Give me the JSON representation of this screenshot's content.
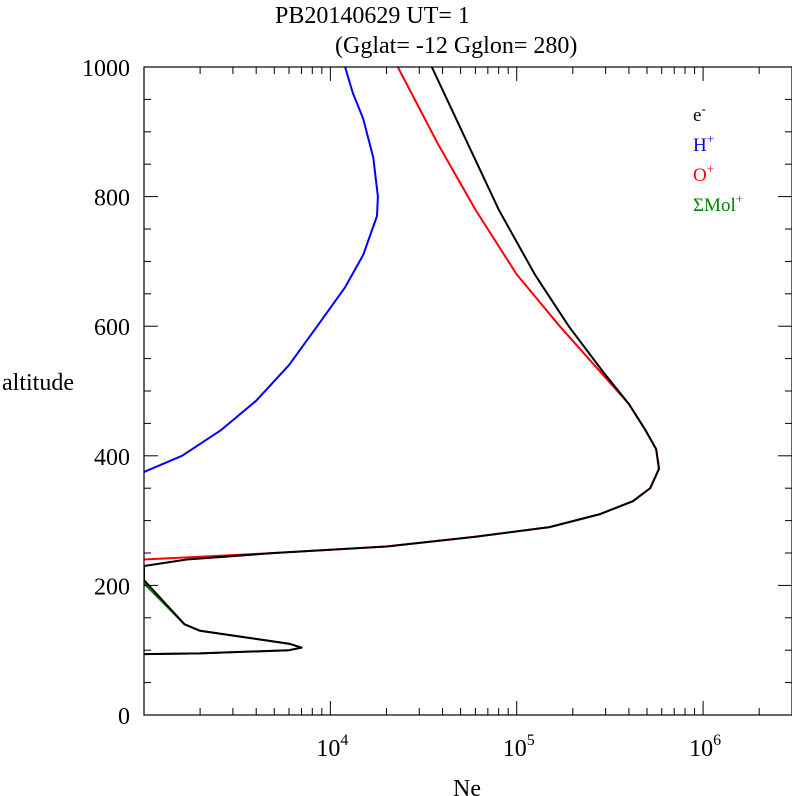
{
  "chart_data": {
    "type": "line",
    "title": "PB20140629   UT=  1",
    "subtitle": "(Gglat= -12   Gglon=  280)",
    "xlabel": "Ne",
    "ylabel": "altitude",
    "xscale": "log",
    "xlim": [
      1000,
      3000000
    ],
    "ylim": [
      0,
      1000
    ],
    "grid": false,
    "legend_position": "top-right",
    "x_ticks": [
      {
        "value": 10000,
        "base": "10",
        "exp": "4"
      },
      {
        "value": 100000,
        "base": "10",
        "exp": "5"
      },
      {
        "value": 1000000,
        "base": "10",
        "exp": "6"
      }
    ],
    "y_ticks": [
      {
        "value": 0,
        "label": "0"
      },
      {
        "value": 200,
        "label": "200"
      },
      {
        "value": 400,
        "label": "400"
      },
      {
        "value": 600,
        "label": "600"
      },
      {
        "value": 800,
        "label": "800"
      },
      {
        "value": 1000,
        "label": "1000"
      }
    ],
    "series": [
      {
        "name": "H+",
        "legend_base": "H",
        "legend_sup": "+",
        "color": "#0000ff",
        "points": [
          [
            1000,
            375
          ],
          [
            1600,
            400
          ],
          [
            2600,
            440
          ],
          [
            4000,
            485
          ],
          [
            6000,
            540
          ],
          [
            8500,
            600
          ],
          [
            12000,
            660
          ],
          [
            15000,
            710
          ],
          [
            17800,
            770
          ],
          [
            18000,
            800
          ],
          [
            17000,
            860
          ],
          [
            15000,
            920
          ],
          [
            13200,
            960
          ],
          [
            12000,
            1000
          ]
        ]
      },
      {
        "name": "O+",
        "legend_base": "O",
        "legend_sup": "+",
        "color": "#ff0000",
        "points": [
          [
            1000,
            240
          ],
          [
            5000,
            250
          ],
          [
            20000,
            260
          ],
          [
            60000,
            275
          ],
          [
            150000,
            290
          ],
          [
            280000,
            310
          ],
          [
            420000,
            330
          ],
          [
            520000,
            350
          ],
          [
            580000,
            380
          ],
          [
            560000,
            410
          ],
          [
            490000,
            440
          ],
          [
            400000,
            480
          ],
          [
            280000,
            530
          ],
          [
            170000,
            600
          ],
          [
            100000,
            680
          ],
          [
            60000,
            780
          ],
          [
            38000,
            880
          ],
          [
            23000,
            1000
          ]
        ]
      },
      {
        "name": "ΣMol+",
        "legend_base": "ΣMol",
        "legend_sup": "+",
        "color": "#008000",
        "points": [
          [
            1000,
            203
          ],
          [
            1650,
            140
          ],
          [
            2000,
            130
          ],
          [
            6000,
            110
          ],
          [
            7000,
            104
          ],
          [
            6000,
            100
          ],
          [
            2000,
            95
          ],
          [
            1000,
            94
          ]
        ]
      },
      {
        "name": "e-",
        "legend_base": "e",
        "legend_sup": "-",
        "color": "#000000",
        "points": [
          [
            1000,
            94
          ],
          [
            2000,
            95
          ],
          [
            6000,
            100
          ],
          [
            7000,
            104
          ],
          [
            6000,
            110
          ],
          [
            2000,
            130
          ],
          [
            1650,
            140
          ],
          [
            1000,
            208
          ],
          [
            1000,
            230
          ],
          [
            1700,
            240
          ],
          [
            5000,
            250
          ],
          [
            20000,
            260
          ],
          [
            60000,
            275
          ],
          [
            150000,
            290
          ],
          [
            280000,
            310
          ],
          [
            420000,
            330
          ],
          [
            520000,
            350
          ],
          [
            580000,
            380
          ],
          [
            560000,
            410
          ],
          [
            490000,
            440
          ],
          [
            400000,
            480
          ],
          [
            290000,
            530
          ],
          [
            190000,
            600
          ],
          [
            125000,
            680
          ],
          [
            80000,
            780
          ],
          [
            55000,
            880
          ],
          [
            35000,
            1000
          ]
        ]
      }
    ]
  }
}
